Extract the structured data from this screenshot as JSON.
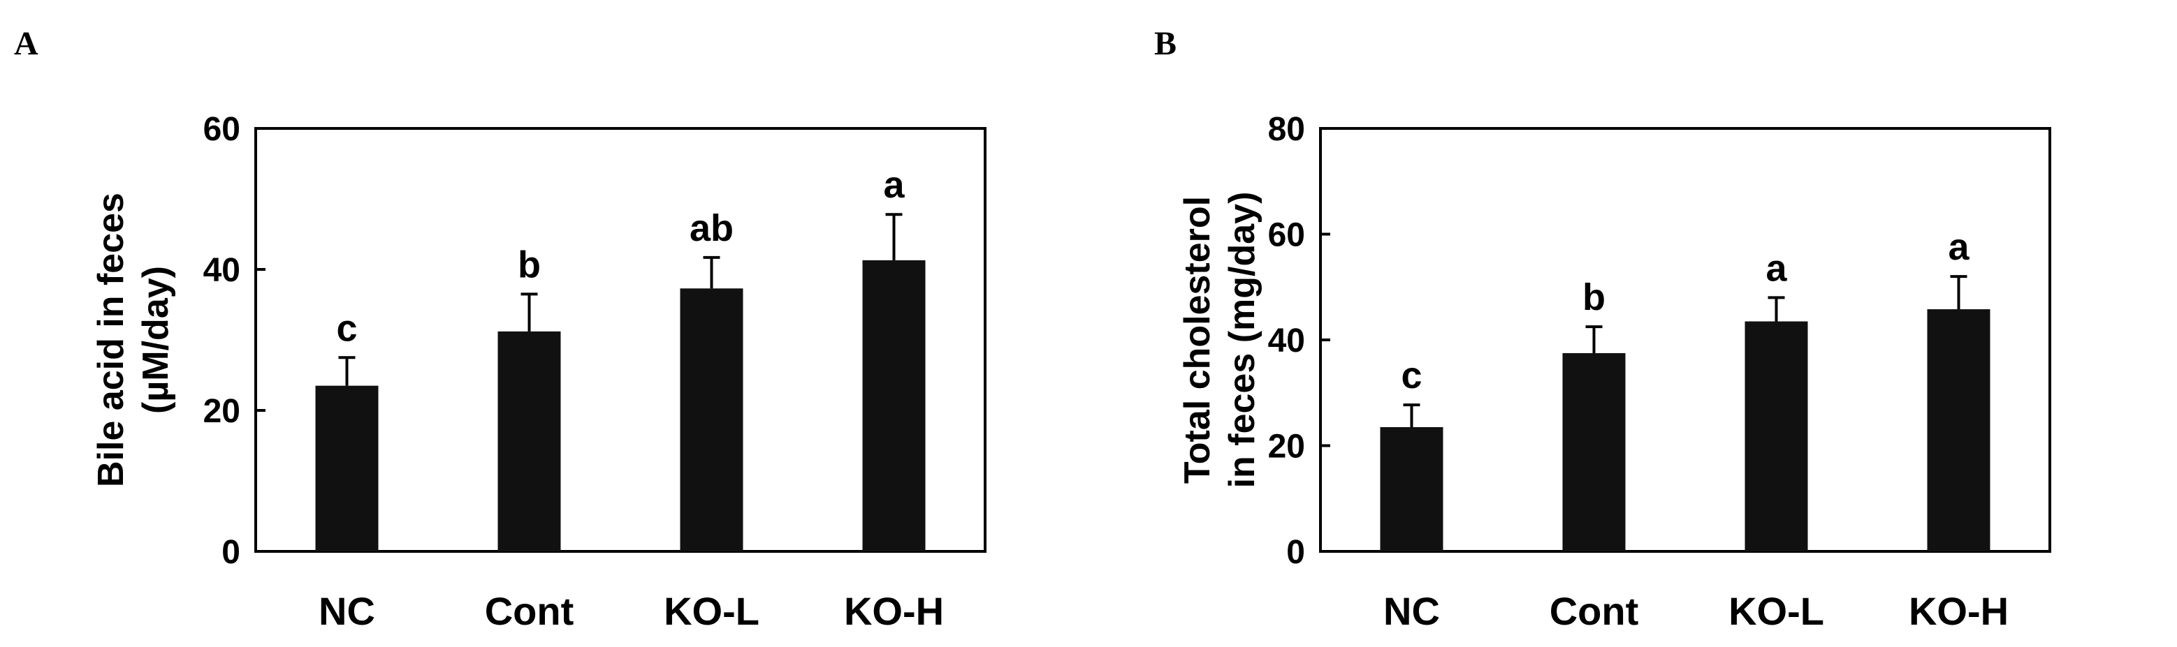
{
  "chart_data": [
    {
      "type": "bar",
      "panel": "A",
      "title": "",
      "xlabel": "",
      "ylabel_lines": [
        "Bile acid in feces",
        "(µM/day)"
      ],
      "categories": [
        "NC",
        "Cont",
        "KO-L",
        "KO-H"
      ],
      "values": [
        23.5,
        31.2,
        37.3,
        41.3
      ],
      "errors": [
        4.0,
        5.3,
        4.4,
        6.5
      ],
      "significance": [
        "c",
        "b",
        "ab",
        "a"
      ],
      "ylim": [
        0,
        60
      ],
      "yticks": [
        "0",
        "20",
        "40",
        "60"
      ],
      "grid": false,
      "bar_color": "#111111"
    },
    {
      "type": "bar",
      "panel": "B",
      "title": "",
      "xlabel": "",
      "ylabel_lines": [
        "Total cholesterol",
        "in feces (mg/day)"
      ],
      "categories": [
        "NC",
        "Cont",
        "KO-L",
        "KO-H"
      ],
      "values": [
        23.5,
        37.5,
        43.5,
        45.8
      ],
      "errors": [
        4.2,
        5.0,
        4.5,
        6.2
      ],
      "significance": [
        "c",
        "b",
        "a",
        "a"
      ],
      "ylim": [
        0,
        80
      ],
      "yticks": [
        "0",
        "20",
        "40",
        "60",
        "80"
      ],
      "grid": false,
      "bar_color": "#111111"
    }
  ]
}
